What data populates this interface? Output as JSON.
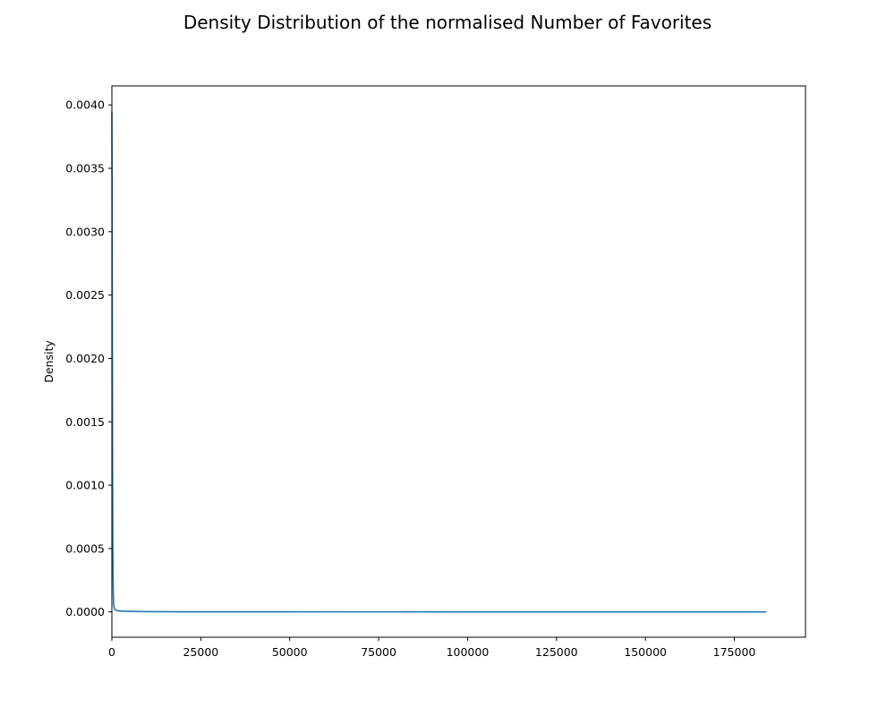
{
  "chart_data": {
    "type": "line",
    "title": "Density Distribution of the normalised Number of Favorites",
    "xlabel": "",
    "ylabel": "Density",
    "xlim": [
      0,
      195000
    ],
    "ylim": [
      -0.0002,
      0.00415
    ],
    "grid": false,
    "x_ticks": [
      0,
      25000,
      50000,
      75000,
      100000,
      125000,
      150000,
      175000
    ],
    "x_tick_labels": [
      "0",
      "25000",
      "50000",
      "75000",
      "100000",
      "125000",
      "150000",
      "175000"
    ],
    "y_ticks": [
      0.0,
      0.0005,
      0.001,
      0.0015,
      0.002,
      0.0025,
      0.003,
      0.0035,
      0.004
    ],
    "y_tick_labels": [
      "0.0000",
      "0.0005",
      "0.0010",
      "0.0015",
      "0.0020",
      "0.0025",
      "0.0030",
      "0.0035",
      "0.0040"
    ],
    "series": [
      {
        "color": "#1f77b4",
        "x": [
          0,
          50,
          100,
          150,
          200,
          250,
          300,
          400,
          500,
          700,
          1000,
          1500,
          2000,
          3000,
          5000,
          10000,
          20000,
          50000,
          100000,
          150000,
          184000
        ],
        "y": [
          0.00395,
          0.0034,
          0.0026,
          0.0018,
          0.00115,
          0.00068,
          0.0004,
          0.00015,
          6e-05,
          2.5e-05,
          1.5e-05,
          1e-05,
          8e-06,
          6e-06,
          4e-06,
          2e-06,
          1e-06,
          5e-07,
          2e-07,
          1e-07,
          1e-07
        ]
      }
    ]
  }
}
